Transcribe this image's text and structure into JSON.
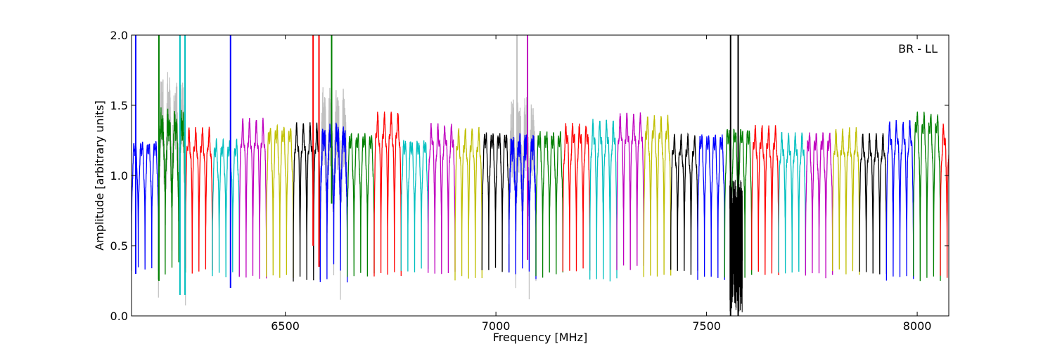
{
  "chart_data": {
    "type": "line",
    "xlabel": "Frequency [MHz]",
    "ylabel": "Amplitude [arbitrary units]",
    "annotation": "BR - LL",
    "xlim": [
      6135,
      8075
    ],
    "ylim": [
      0.0,
      2.0
    ],
    "xticks": [
      6500,
      7000,
      7500,
      8000
    ],
    "xtick_labels": [
      "6500",
      "7000",
      "7500",
      "8000"
    ],
    "yticks": [
      0.0,
      0.5,
      1.0,
      1.5,
      2.0
    ],
    "ytick_labels": [
      "0.0",
      "0.5",
      "1.0",
      "1.5",
      "2.0"
    ],
    "grid": false,
    "legend": "none",
    "series_colors": [
      "#0000ff",
      "#008000",
      "#ff0000",
      "#00bfbf",
      "#bf00bf",
      "#bfbf00",
      "#000000"
    ],
    "flagged_color": "#c0c0c0",
    "sub_band_width_mhz": 64,
    "channels_per_sub_band": 4,
    "typical_channel_peak": 1.3,
    "typical_channel_trough": 0.3,
    "flagged_regions_mhz": [
      [
        6170,
        6270
      ],
      [
        6555,
        6635
      ],
      [
        7040,
        7080
      ]
    ],
    "rfi_region_mhz": [
      7555,
      7585
    ],
    "rfi_spikes": [
      {
        "x": 6145,
        "color": "#0000ff",
        "min": 0.3,
        "max": 2.0
      },
      {
        "x": 6200,
        "color": "#008000",
        "min": 0.25,
        "max": 2.0
      },
      {
        "x": 6250,
        "color": "#00bfbf",
        "min": 0.15,
        "max": 2.0
      },
      {
        "x": 6262,
        "color": "#00bfbf",
        "min": 0.15,
        "max": 2.0
      },
      {
        "x": 6370,
        "color": "#0000ff",
        "min": 0.2,
        "max": 2.0
      },
      {
        "x": 6566,
        "color": "#ff0000",
        "min": 0.5,
        "max": 2.0
      },
      {
        "x": 6580,
        "color": "#ff0000",
        "min": 0.35,
        "max": 2.0
      },
      {
        "x": 6610,
        "color": "#008000",
        "min": 0.8,
        "max": 2.0
      },
      {
        "x": 7050,
        "color": "#c0c0c0",
        "min": 1.2,
        "max": 2.0
      },
      {
        "x": 7075,
        "color": "#bf00bf",
        "min": 0.4,
        "max": 2.0
      },
      {
        "x": 7557,
        "color": "#000000",
        "min": 0.0,
        "max": 2.0
      },
      {
        "x": 7575,
        "color": "#000000",
        "min": 0.0,
        "max": 2.0
      }
    ]
  }
}
